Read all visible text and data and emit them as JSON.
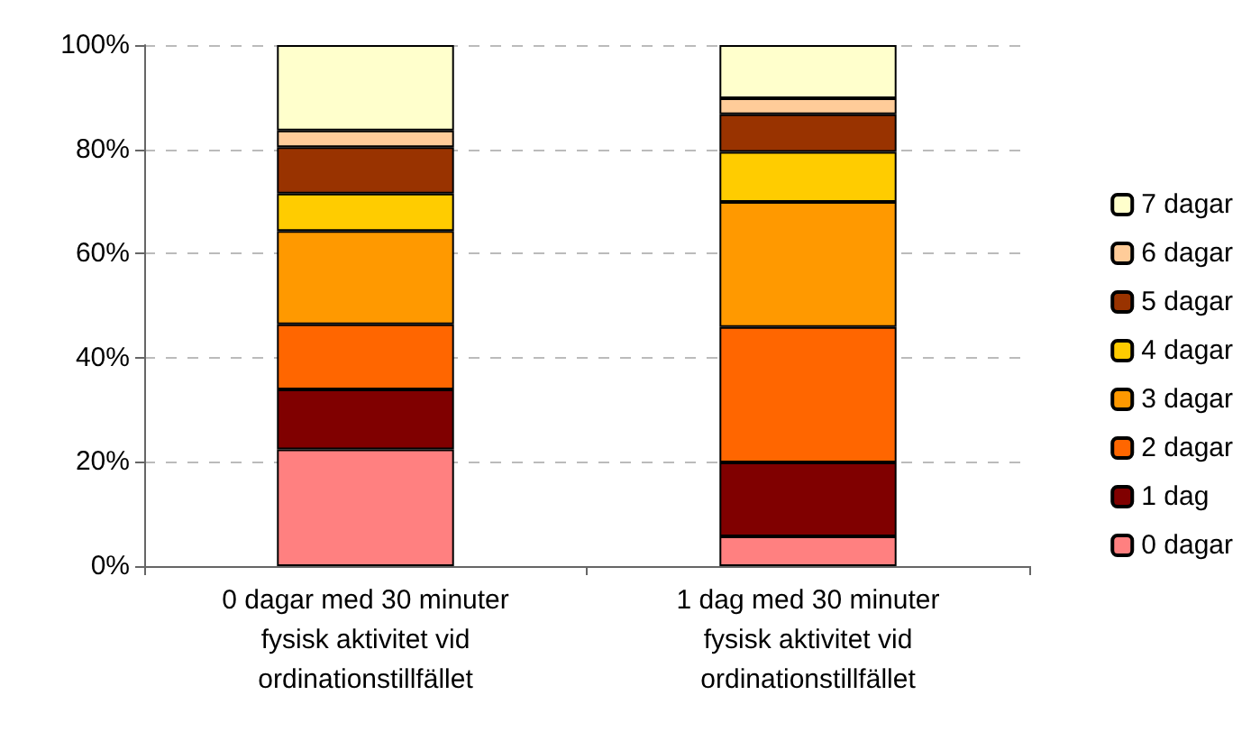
{
  "chart_data": {
    "type": "bar",
    "stacked": true,
    "categories": [
      "0 dagar med 30 minuter\nfysisk aktivitet vid\nordinationstillfället",
      "1 dag med 30 minuter\nfysisk aktivitet vid\nordinationstillfället"
    ],
    "series": [
      {
        "name": "0 dagar",
        "color": "#ff8080",
        "values": [
          22.4,
          5.7
        ]
      },
      {
        "name": "1 dag",
        "color": "#800000",
        "values": [
          11.5,
          14.2
        ]
      },
      {
        "name": "2 dagar",
        "color": "#ff6600",
        "values": [
          12.5,
          26.0
        ]
      },
      {
        "name": "3 dagar",
        "color": "#ff9900",
        "values": [
          17.9,
          24.0
        ]
      },
      {
        "name": "4 dagar",
        "color": "#ffcc00",
        "values": [
          7.2,
          9.6
        ]
      },
      {
        "name": "5 dagar",
        "color": "#993300",
        "values": [
          8.9,
          7.2
        ]
      },
      {
        "name": "6 dagar",
        "color": "#ffcc99",
        "values": [
          3.2,
          3.1
        ]
      },
      {
        "name": "7 dagar",
        "color": "#ffffcc",
        "values": [
          16.4,
          10.2
        ]
      }
    ],
    "ylim": [
      0,
      100
    ],
    "yticks": [
      {
        "value": 0,
        "label": "0%"
      },
      {
        "value": 20,
        "label": "20%"
      },
      {
        "value": 40,
        "label": "40%"
      },
      {
        "value": 60,
        "label": "60%"
      },
      {
        "value": 80,
        "label": "80%"
      },
      {
        "value": 100,
        "label": "100%"
      }
    ],
    "grid": "y",
    "legend": "right"
  }
}
